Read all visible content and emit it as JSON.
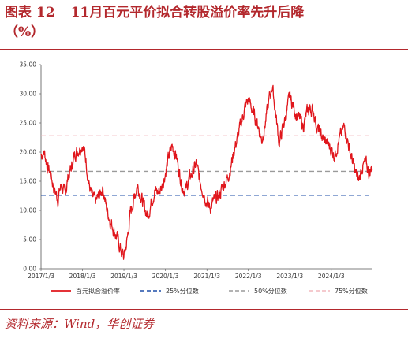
{
  "figure": {
    "label": "图表 12",
    "title": "11月百元平价拟合转股溢价率先升后降",
    "unit": "（%）",
    "source": "资料来源：Wind，华创证券"
  },
  "chart_data": {
    "type": "line",
    "ylim": [
      0,
      35
    ],
    "y_ticks": [
      "0.00",
      "5.00",
      "10.00",
      "15.00",
      "20.00",
      "25.00",
      "30.00",
      "35.00"
    ],
    "x_ticks": [
      "2017/1/3",
      "2018/1/3",
      "2019/1/3",
      "2020/1/3",
      "2021/1/3",
      "2022/1/3",
      "2023/1/3",
      "2024/1/3"
    ],
    "x_range": [
      "2017/1/3",
      "2024/12/31"
    ],
    "legend_position": "bottom",
    "series": [
      {
        "name": "百元拟合溢价率",
        "style": "solid",
        "color": "#e0161c",
        "points": [
          [
            "2017/1/3",
            19.5
          ],
          [
            "2017/2/1",
            20.0
          ],
          [
            "2017/3/1",
            17.5
          ],
          [
            "2017/4/1",
            16.0
          ],
          [
            "2017/5/1",
            13.5
          ],
          [
            "2017/6/1",
            12.0
          ],
          [
            "2017/7/1",
            14.5
          ],
          [
            "2017/8/1",
            12.5
          ],
          [
            "2017/9/1",
            16.0
          ],
          [
            "2017/10/1",
            17.5
          ],
          [
            "2017/11/1",
            20.0
          ],
          [
            "2017/12/1",
            20.5
          ],
          [
            "2018/1/3",
            21.5
          ],
          [
            "2018/2/1",
            19.0
          ],
          [
            "2018/3/1",
            14.5
          ],
          [
            "2018/4/1",
            12.0
          ],
          [
            "2018/5/1",
            11.5
          ],
          [
            "2018/6/1",
            12.5
          ],
          [
            "2018/7/1",
            14.0
          ],
          [
            "2018/8/1",
            10.5
          ],
          [
            "2018/9/1",
            8.5
          ],
          [
            "2018/10/1",
            7.0
          ],
          [
            "2018/11/1",
            5.5
          ],
          [
            "2018/12/1",
            3.5
          ],
          [
            "2019/1/3",
            2.0
          ],
          [
            "2019/2/1",
            5.0
          ],
          [
            "2019/3/1",
            9.5
          ],
          [
            "2019/4/1",
            12.0
          ],
          [
            "2019/5/1",
            14.5
          ],
          [
            "2019/6/1",
            12.5
          ],
          [
            "2019/7/1",
            10.5
          ],
          [
            "2019/8/1",
            9.0
          ],
          [
            "2019/9/1",
            11.5
          ],
          [
            "2019/10/1",
            13.5
          ],
          [
            "2019/11/1",
            13.0
          ],
          [
            "2019/12/1",
            14.0
          ],
          [
            "2020/1/3",
            16.5
          ],
          [
            "2020/2/1",
            19.0
          ],
          [
            "2020/3/1",
            21.0
          ],
          [
            "2020/4/1",
            20.0
          ],
          [
            "2020/5/1",
            17.0
          ],
          [
            "2020/6/1",
            14.0
          ],
          [
            "2020/7/1",
            13.5
          ],
          [
            "2020/8/1",
            15.5
          ],
          [
            "2020/9/1",
            16.5
          ],
          [
            "2020/10/1",
            18.0
          ],
          [
            "2020/11/1",
            15.0
          ],
          [
            "2020/12/1",
            13.5
          ],
          [
            "2021/1/3",
            11.5
          ],
          [
            "2021/2/1",
            10.5
          ],
          [
            "2021/3/1",
            11.5
          ],
          [
            "2021/4/1",
            12.0
          ],
          [
            "2021/5/1",
            13.0
          ],
          [
            "2021/6/1",
            14.5
          ],
          [
            "2021/7/1",
            15.5
          ],
          [
            "2021/8/1",
            17.5
          ],
          [
            "2021/9/1",
            20.5
          ],
          [
            "2021/10/1",
            22.5
          ],
          [
            "2021/11/1",
            25.0
          ],
          [
            "2021/12/1",
            27.5
          ],
          [
            "2022/1/3",
            29.0
          ],
          [
            "2022/2/1",
            27.5
          ],
          [
            "2022/3/1",
            26.0
          ],
          [
            "2022/4/1",
            24.5
          ],
          [
            "2022/5/1",
            22.0
          ],
          [
            "2022/6/1",
            25.0
          ],
          [
            "2022/7/1",
            28.5
          ],
          [
            "2022/8/1",
            31.5
          ],
          [
            "2022/9/1",
            26.5
          ],
          [
            "2022/10/1",
            21.5
          ],
          [
            "2022/11/1",
            24.0
          ],
          [
            "2022/12/1",
            26.5
          ],
          [
            "2023/1/3",
            29.5
          ],
          [
            "2023/2/1",
            28.0
          ],
          [
            "2023/3/1",
            26.5
          ],
          [
            "2023/4/1",
            25.5
          ],
          [
            "2023/5/1",
            24.5
          ],
          [
            "2023/6/1",
            26.5
          ],
          [
            "2023/7/1",
            27.5
          ],
          [
            "2023/8/1",
            27.0
          ],
          [
            "2023/9/1",
            24.0
          ],
          [
            "2023/10/1",
            23.0
          ],
          [
            "2023/11/1",
            22.0
          ],
          [
            "2023/12/1",
            21.5
          ],
          [
            "2024/1/3",
            20.5
          ],
          [
            "2024/2/1",
            19.5
          ],
          [
            "2024/3/1",
            21.5
          ],
          [
            "2024/4/1",
            23.0
          ],
          [
            "2024/5/1",
            24.5
          ],
          [
            "2024/6/1",
            21.5
          ],
          [
            "2024/7/1",
            19.0
          ],
          [
            "2024/8/1",
            16.5
          ],
          [
            "2024/9/1",
            15.0
          ],
          [
            "2024/10/1",
            17.5
          ],
          [
            "2024/11/1",
            18.0
          ],
          [
            "2024/12/1",
            16.5
          ],
          [
            "2024/12/31",
            17.5
          ]
        ]
      },
      {
        "name": "25%分位数",
        "style": "dashed",
        "color": "#1f4fa8",
        "value": 12.6
      },
      {
        "name": "50%分位数",
        "style": "dashed",
        "color": "#9a9a9a",
        "value": 16.7
      },
      {
        "name": "75%分位数",
        "style": "dashed",
        "color": "#f2b8bd",
        "value": 22.8
      }
    ]
  }
}
